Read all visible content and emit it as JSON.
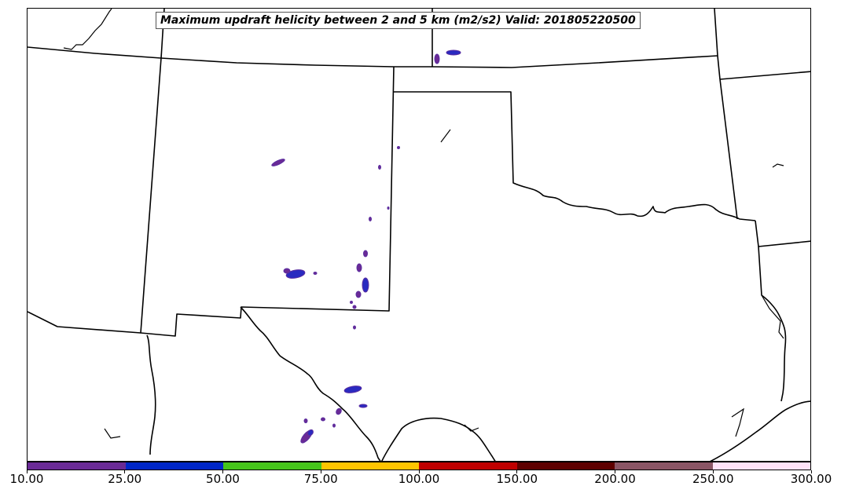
{
  "title": "Maximum updraft helicity between 2 and 5 km (m2/s2) Valid: 201805220500",
  "legend": {
    "colors": [
      "#6a2a96",
      "#0026c8",
      "#45c41a",
      "#ffc400",
      "#c00000",
      "#5e0000",
      "#8a5565",
      "#ffe2f8"
    ],
    "tick_labels": [
      "10.00",
      "25.00",
      "50.00",
      "75.00",
      "100.00",
      "150.00",
      "200.00",
      "250.00",
      "300.00"
    ]
  },
  "map": {
    "boundary_color": "#000000",
    "features": [
      "state-boundaries",
      "coastline",
      "helicity-cells"
    ]
  }
}
